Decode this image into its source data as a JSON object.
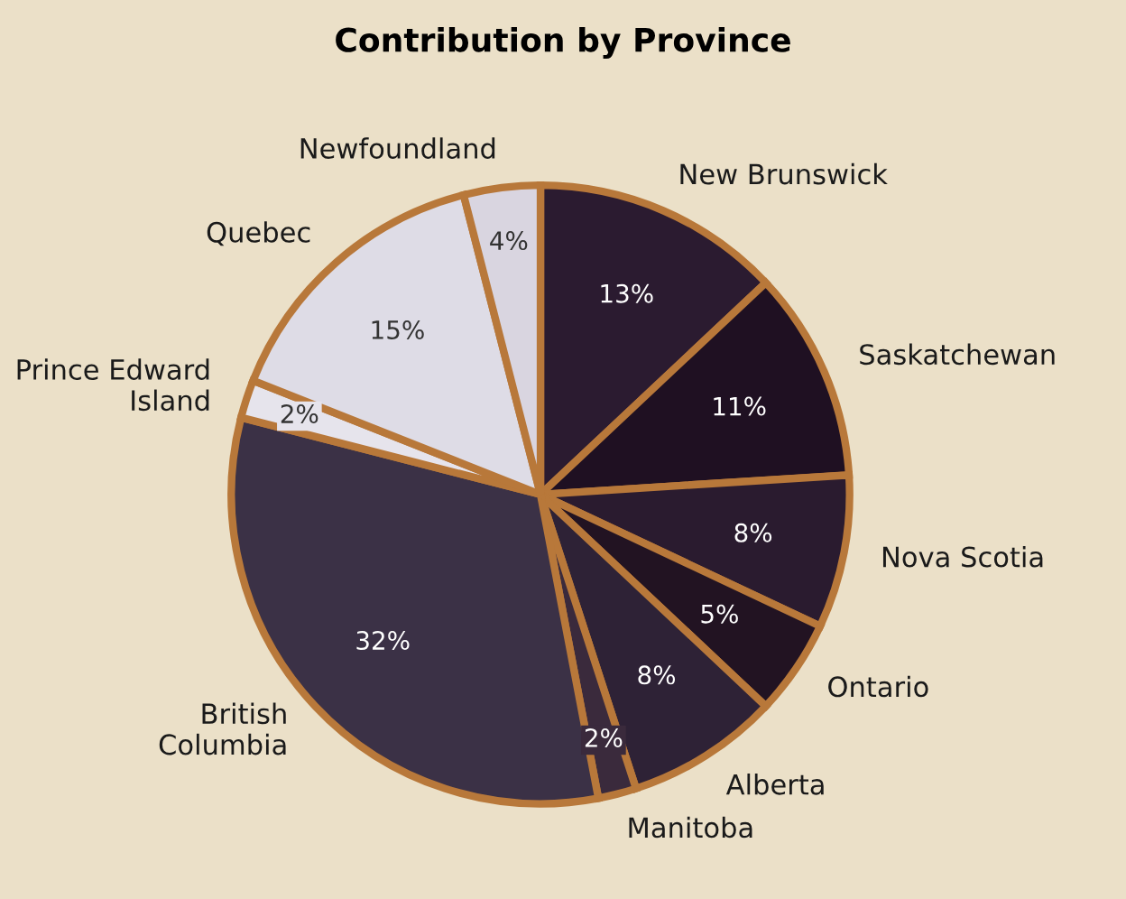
{
  "chart_data": {
    "type": "pie",
    "title": "Contribution by Province",
    "categories": [
      "New Brunswick",
      "Saskatchewan",
      "Nova Scotia",
      "Ontario",
      "Alberta",
      "Manitoba",
      "British\nColumbia",
      "Prince Edward\nIsland",
      "Quebec",
      "Newfoundland"
    ],
    "values": [
      13,
      11,
      8,
      5,
      8,
      2,
      32,
      2,
      15,
      4
    ],
    "colors": [
      "#2b1b30",
      "#1f1022",
      "#2a1b2f",
      "#221322",
      "#2e2236",
      "#3a2a3c",
      "#3b3146",
      "#e6e4ec",
      "#dedce6",
      "#d9d5e0"
    ],
    "value_labels": [
      "13%",
      "11%",
      "8%",
      "5%",
      "8%",
      "2%",
      "32%",
      "2%",
      "15%",
      "4%"
    ]
  }
}
